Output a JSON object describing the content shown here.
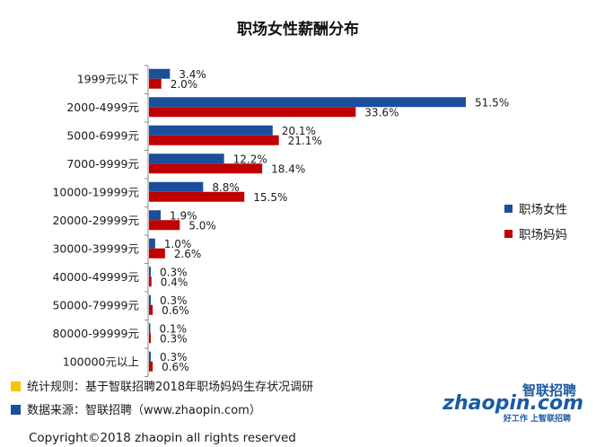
{
  "chart_data": {
    "type": "bar",
    "orientation": "horizontal",
    "title": "职场女性薪酬分布",
    "categories": [
      "1999元以下",
      "2000-4999元",
      "5000-6999元",
      "7000-9999元",
      "10000-19999元",
      "20000-29999元",
      "30000-39999元",
      "40000-49999元",
      "50000-79999元",
      "80000-99999元",
      "100000元以上"
    ],
    "series": [
      {
        "name": "职场女性",
        "color": "#1b4f9c",
        "values": [
          3.4,
          51.5,
          20.1,
          12.2,
          8.8,
          1.9,
          1.0,
          0.3,
          0.3,
          0.1,
          0.3
        ],
        "labels": [
          "3.4%",
          "51.5%",
          "20.1%",
          "12.2%",
          "8.8%",
          "1.9%",
          "1.0%",
          "0.3%",
          "0.3%",
          "0.1%",
          "0.3%"
        ]
      },
      {
        "name": "职场妈妈",
        "color": "#c00000",
        "values": [
          2.0,
          33.6,
          21.1,
          18.4,
          15.5,
          5.0,
          2.6,
          0.4,
          0.6,
          0.3,
          0.6
        ],
        "labels": [
          "2.0%",
          "33.6%",
          "21.1%",
          "18.4%",
          "15.5%",
          "5.0%",
          "2.6%",
          "0.4%",
          "0.6%",
          "0.3%",
          "0.6%"
        ]
      }
    ],
    "xlim": [
      0,
      55
    ],
    "grid": false,
    "legend_position": "right"
  },
  "footer": {
    "notes": [
      {
        "text": "统计规则：基于智联招聘2018年职场妈妈生存状况调研",
        "color": "#f5c400"
      },
      {
        "text": "数据来源：智联招聘（www.zhaopin.com）",
        "color": "#1b4f9c"
      }
    ],
    "copyright": "Copyright©2018 zhaopin all rights reserved"
  },
  "logo": {
    "brand_cn": "智联招聘",
    "brand_en": "zhaopin.com",
    "slogan": "好工作  上智联招聘"
  }
}
